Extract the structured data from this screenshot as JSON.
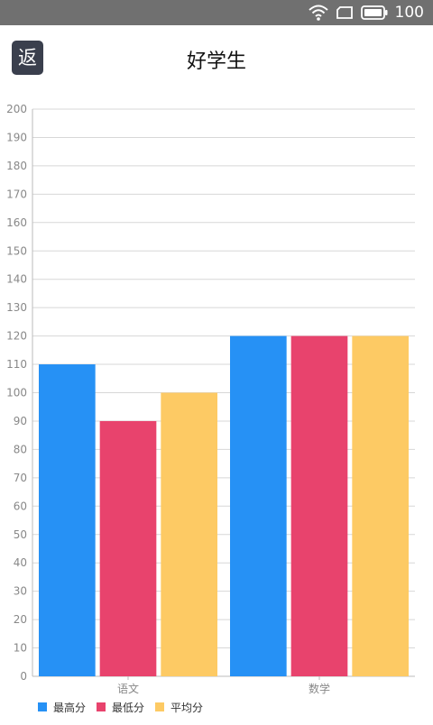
{
  "status_bar": {
    "wifi_icon": "wifi-icon",
    "sim_icon": "sim-card-icon",
    "battery_icon": "battery-icon",
    "battery_level": "100"
  },
  "header": {
    "back_label": "返",
    "title": "好学生"
  },
  "colors": {
    "series": [
      "#2691f5",
      "#e8436d",
      "#fdca64"
    ],
    "grid": "#d7d7d7",
    "axis_text": "#888888"
  },
  "chart_data": {
    "type": "bar",
    "categories": [
      "语文",
      "数学"
    ],
    "series": [
      {
        "name": "最高分",
        "values": [
          110,
          120
        ]
      },
      {
        "name": "最低分",
        "values": [
          90,
          120
        ]
      },
      {
        "name": "平均分",
        "values": [
          100,
          120
        ]
      }
    ],
    "ylim": [
      0,
      200
    ],
    "yticks": [
      0,
      10,
      20,
      30,
      40,
      50,
      60,
      70,
      80,
      90,
      100,
      110,
      120,
      130,
      140,
      150,
      160,
      170,
      180,
      190,
      200
    ],
    "grid": true,
    "legend": "bottom-left"
  }
}
